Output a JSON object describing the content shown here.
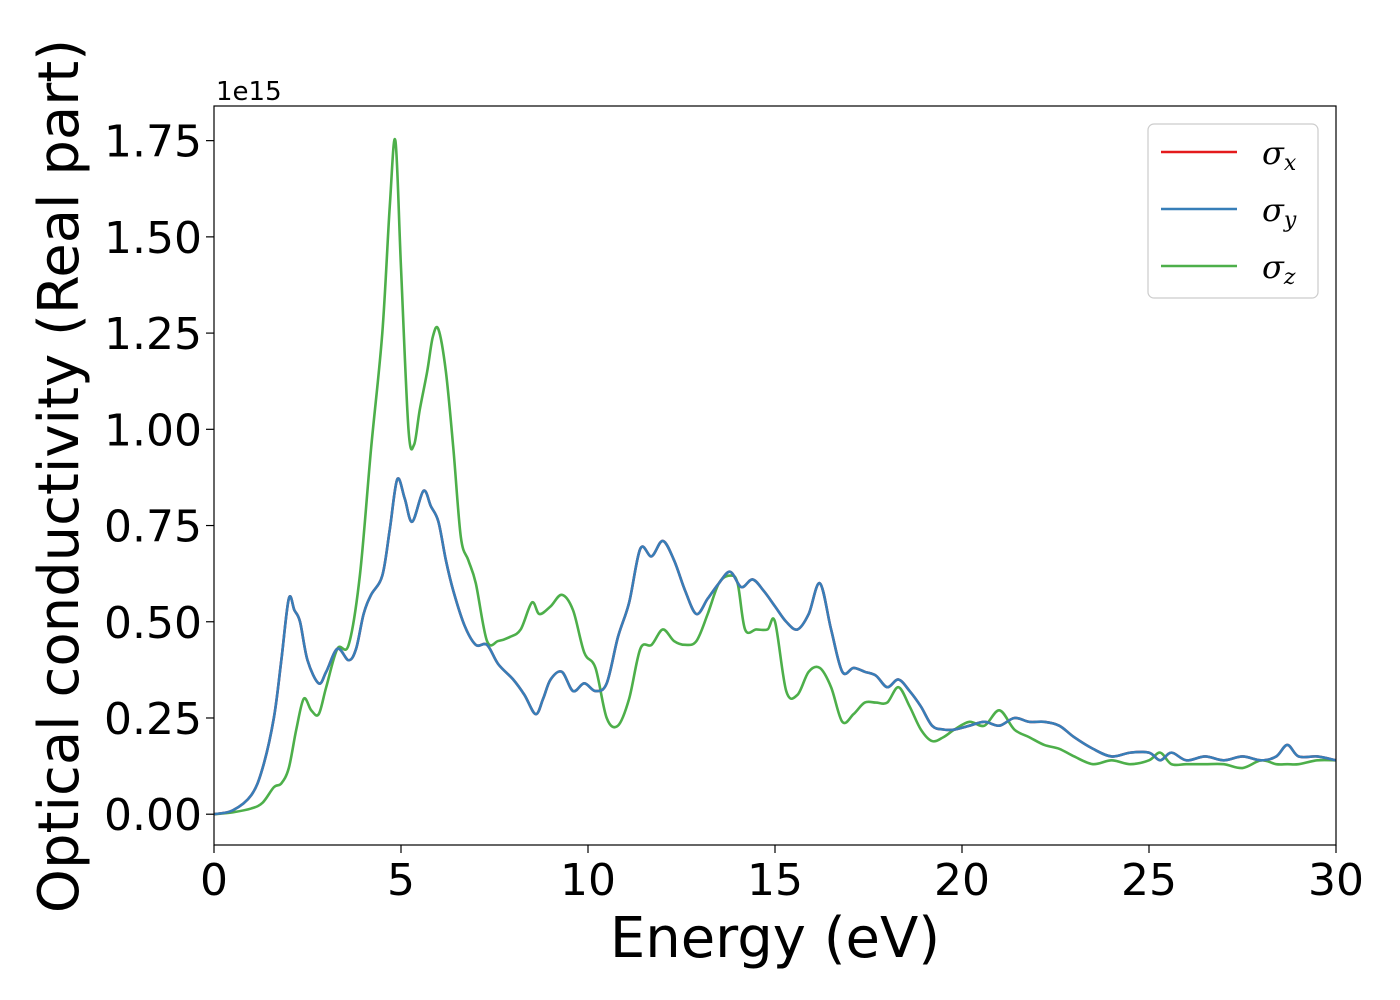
{
  "chart_data": {
    "type": "line",
    "xlabel": "Energy (eV)",
    "ylabel": "Optical conductivity (Real part)",
    "y_offset_text": "1e15",
    "xlim": [
      0,
      30
    ],
    "ylim": [
      -0.08,
      1.84
    ],
    "x_ticks": [
      0,
      5,
      10,
      15,
      20,
      25,
      30
    ],
    "x_tick_labels": [
      "0",
      "5",
      "10",
      "15",
      "20",
      "25",
      "30"
    ],
    "y_ticks": [
      0.0,
      0.25,
      0.5,
      0.75,
      1.0,
      1.25,
      1.5,
      1.75
    ],
    "y_tick_labels": [
      "0.00",
      "0.25",
      "0.50",
      "0.75",
      "1.00",
      "1.25",
      "1.50",
      "1.75"
    ],
    "grid": false,
    "legend_position": "top-right",
    "series": [
      {
        "name": "σx",
        "symbol": "σ",
        "subscript": "x",
        "color": "#e41a1c",
        "x": [
          0,
          0.5,
          1,
          1.3,
          1.6,
          1.8,
          2.0,
          2.15,
          2.3,
          2.5,
          2.8,
          3.0,
          3.3,
          3.6,
          3.8,
          4.0,
          4.2,
          4.5,
          4.7,
          4.9,
          5.1,
          5.3,
          5.6,
          5.8,
          6.0,
          6.2,
          6.4,
          6.7,
          7.0,
          7.3,
          7.6,
          8.0,
          8.3,
          8.6,
          8.8,
          9.0,
          9.3,
          9.6,
          9.9,
          10.2,
          10.5,
          10.8,
          11.1,
          11.4,
          11.7,
          12.0,
          12.3,
          12.6,
          12.9,
          13.2,
          13.5,
          13.8,
          14.1,
          14.4,
          14.7,
          15.0,
          15.3,
          15.6,
          15.9,
          16.2,
          16.5,
          16.8,
          17.1,
          17.4,
          17.7,
          18.0,
          18.3,
          18.6,
          18.9,
          19.2,
          19.5,
          19.8,
          20.2,
          20.6,
          21.0,
          21.4,
          21.8,
          22.2,
          22.6,
          23.0,
          23.5,
          24.0,
          24.5,
          25.0,
          25.3,
          25.6,
          26.0,
          26.5,
          27.0,
          27.5,
          28.0,
          28.4,
          28.7,
          29.0,
          29.5,
          30.0
        ],
        "values": [
          0.0,
          0.01,
          0.05,
          0.12,
          0.25,
          0.4,
          0.56,
          0.53,
          0.5,
          0.4,
          0.34,
          0.37,
          0.43,
          0.4,
          0.43,
          0.52,
          0.57,
          0.62,
          0.74,
          0.87,
          0.82,
          0.76,
          0.84,
          0.8,
          0.76,
          0.66,
          0.58,
          0.49,
          0.44,
          0.44,
          0.39,
          0.35,
          0.31,
          0.26,
          0.3,
          0.35,
          0.37,
          0.32,
          0.34,
          0.32,
          0.34,
          0.46,
          0.55,
          0.69,
          0.67,
          0.71,
          0.66,
          0.58,
          0.52,
          0.56,
          0.6,
          0.63,
          0.59,
          0.61,
          0.58,
          0.54,
          0.5,
          0.48,
          0.52,
          0.6,
          0.48,
          0.37,
          0.38,
          0.37,
          0.36,
          0.33,
          0.35,
          0.32,
          0.28,
          0.23,
          0.22,
          0.22,
          0.23,
          0.24,
          0.23,
          0.25,
          0.24,
          0.24,
          0.23,
          0.2,
          0.17,
          0.15,
          0.16,
          0.16,
          0.14,
          0.16,
          0.14,
          0.15,
          0.14,
          0.15,
          0.14,
          0.15,
          0.18,
          0.15,
          0.15,
          0.14
        ]
      },
      {
        "name": "σy",
        "symbol": "σ",
        "subscript": "y",
        "color": "#377eb8",
        "x": [
          0,
          0.5,
          1,
          1.3,
          1.6,
          1.8,
          2.0,
          2.15,
          2.3,
          2.5,
          2.8,
          3.0,
          3.3,
          3.6,
          3.8,
          4.0,
          4.2,
          4.5,
          4.7,
          4.9,
          5.1,
          5.3,
          5.6,
          5.8,
          6.0,
          6.2,
          6.4,
          6.7,
          7.0,
          7.3,
          7.6,
          8.0,
          8.3,
          8.6,
          8.8,
          9.0,
          9.3,
          9.6,
          9.9,
          10.2,
          10.5,
          10.8,
          11.1,
          11.4,
          11.7,
          12.0,
          12.3,
          12.6,
          12.9,
          13.2,
          13.5,
          13.8,
          14.1,
          14.4,
          14.7,
          15.0,
          15.3,
          15.6,
          15.9,
          16.2,
          16.5,
          16.8,
          17.1,
          17.4,
          17.7,
          18.0,
          18.3,
          18.6,
          18.9,
          19.2,
          19.5,
          19.8,
          20.2,
          20.6,
          21.0,
          21.4,
          21.8,
          22.2,
          22.6,
          23.0,
          23.5,
          24.0,
          24.5,
          25.0,
          25.3,
          25.6,
          26.0,
          26.5,
          27.0,
          27.5,
          28.0,
          28.4,
          28.7,
          29.0,
          29.5,
          30.0
        ],
        "values": [
          0.0,
          0.01,
          0.05,
          0.12,
          0.25,
          0.4,
          0.56,
          0.53,
          0.5,
          0.4,
          0.34,
          0.37,
          0.43,
          0.4,
          0.43,
          0.52,
          0.57,
          0.62,
          0.74,
          0.87,
          0.82,
          0.76,
          0.84,
          0.8,
          0.76,
          0.66,
          0.58,
          0.49,
          0.44,
          0.44,
          0.39,
          0.35,
          0.31,
          0.26,
          0.3,
          0.35,
          0.37,
          0.32,
          0.34,
          0.32,
          0.34,
          0.46,
          0.55,
          0.69,
          0.67,
          0.71,
          0.66,
          0.58,
          0.52,
          0.56,
          0.6,
          0.63,
          0.59,
          0.61,
          0.58,
          0.54,
          0.5,
          0.48,
          0.52,
          0.6,
          0.48,
          0.37,
          0.38,
          0.37,
          0.36,
          0.33,
          0.35,
          0.32,
          0.28,
          0.23,
          0.22,
          0.22,
          0.23,
          0.24,
          0.23,
          0.25,
          0.24,
          0.24,
          0.23,
          0.2,
          0.17,
          0.15,
          0.16,
          0.16,
          0.14,
          0.16,
          0.14,
          0.15,
          0.14,
          0.15,
          0.14,
          0.15,
          0.18,
          0.15,
          0.15,
          0.14
        ]
      },
      {
        "name": "σz",
        "symbol": "σ",
        "subscript": "z",
        "color": "#4daf4a",
        "x": [
          0,
          0.5,
          1,
          1.3,
          1.6,
          1.8,
          2.0,
          2.2,
          2.4,
          2.6,
          2.8,
          3.0,
          3.3,
          3.6,
          3.9,
          4.2,
          4.5,
          4.7,
          4.85,
          5.0,
          5.2,
          5.35,
          5.5,
          5.7,
          5.85,
          6.0,
          6.2,
          6.4,
          6.6,
          6.8,
          7.0,
          7.3,
          7.6,
          7.9,
          8.2,
          8.5,
          8.7,
          9.0,
          9.3,
          9.6,
          9.9,
          10.2,
          10.5,
          10.8,
          11.1,
          11.4,
          11.7,
          12.0,
          12.3,
          12.6,
          12.9,
          13.2,
          13.5,
          13.8,
          14.0,
          14.2,
          14.5,
          14.8,
          15.0,
          15.3,
          15.6,
          15.9,
          16.2,
          16.5,
          16.8,
          17.1,
          17.4,
          17.7,
          18.0,
          18.3,
          18.6,
          18.9,
          19.2,
          19.5,
          19.8,
          20.2,
          20.6,
          21.0,
          21.4,
          21.8,
          22.2,
          22.6,
          23.0,
          23.5,
          24.0,
          24.5,
          25.0,
          25.3,
          25.6,
          26.0,
          26.5,
          27.0,
          27.5,
          28.0,
          28.4,
          28.7,
          29.0,
          29.5,
          30.0
        ],
        "values": [
          0.0,
          0.005,
          0.015,
          0.03,
          0.07,
          0.08,
          0.12,
          0.22,
          0.3,
          0.27,
          0.26,
          0.33,
          0.43,
          0.44,
          0.62,
          0.95,
          1.25,
          1.58,
          1.75,
          1.42,
          1.0,
          0.96,
          1.05,
          1.15,
          1.24,
          1.26,
          1.15,
          0.95,
          0.72,
          0.66,
          0.6,
          0.45,
          0.45,
          0.46,
          0.48,
          0.55,
          0.52,
          0.54,
          0.57,
          0.53,
          0.42,
          0.38,
          0.25,
          0.23,
          0.3,
          0.43,
          0.44,
          0.48,
          0.45,
          0.44,
          0.45,
          0.52,
          0.6,
          0.62,
          0.6,
          0.48,
          0.48,
          0.48,
          0.5,
          0.32,
          0.31,
          0.37,
          0.38,
          0.33,
          0.24,
          0.26,
          0.29,
          0.29,
          0.29,
          0.33,
          0.28,
          0.22,
          0.19,
          0.2,
          0.22,
          0.24,
          0.23,
          0.27,
          0.22,
          0.2,
          0.18,
          0.17,
          0.15,
          0.13,
          0.14,
          0.13,
          0.14,
          0.16,
          0.13,
          0.13,
          0.13,
          0.13,
          0.12,
          0.14,
          0.13,
          0.13,
          0.13,
          0.14,
          0.14
        ]
      }
    ]
  }
}
